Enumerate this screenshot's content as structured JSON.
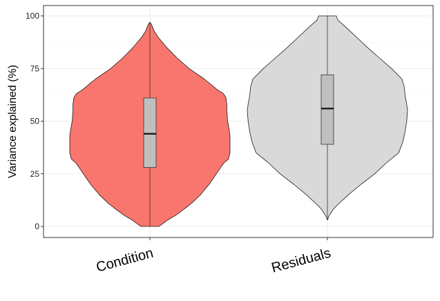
{
  "chart_data": {
    "type": "violin",
    "title": "",
    "xlabel": "",
    "ylabel": "Variance explained (%)",
    "ylim": [
      0,
      100
    ],
    "yticks": [
      0,
      25,
      50,
      75,
      100
    ],
    "grid": true,
    "legend": "none",
    "categories": [
      "Condition",
      "Residuals"
    ],
    "series": [
      {
        "category": "Condition",
        "fill": "#f8766d",
        "box": {
          "min": 0,
          "q1": 28,
          "median": 44,
          "q3": 61,
          "max": 97
        },
        "density": [
          [
            0,
            0.11
          ],
          [
            1,
            0.15
          ],
          [
            3,
            0.22
          ],
          [
            5,
            0.31
          ],
          [
            8,
            0.42
          ],
          [
            11,
            0.52
          ],
          [
            15,
            0.63
          ],
          [
            20,
            0.74
          ],
          [
            25,
            0.83
          ],
          [
            30,
            0.92
          ],
          [
            32,
            0.98
          ],
          [
            35,
            1.0
          ],
          [
            40,
            1.0
          ],
          [
            43,
            1.0
          ],
          [
            46,
            0.99
          ],
          [
            50,
            0.97
          ],
          [
            55,
            0.96
          ],
          [
            58,
            0.96
          ],
          [
            61,
            0.95
          ],
          [
            63,
            0.92
          ],
          [
            65,
            0.84
          ],
          [
            70,
            0.68
          ],
          [
            75,
            0.49
          ],
          [
            80,
            0.34
          ],
          [
            85,
            0.21
          ],
          [
            90,
            0.1
          ],
          [
            93,
            0.05
          ],
          [
            96,
            0.02
          ],
          [
            97,
            0.0
          ]
        ]
      },
      {
        "category": "Residuals",
        "fill": "#d9d9d9",
        "box": {
          "min": 3,
          "q1": 39,
          "median": 56,
          "q3": 72,
          "max": 100
        },
        "density": [
          [
            3,
            0.0
          ],
          [
            5,
            0.02
          ],
          [
            8,
            0.07
          ],
          [
            10,
            0.12
          ],
          [
            15,
            0.26
          ],
          [
            20,
            0.42
          ],
          [
            25,
            0.59
          ],
          [
            30,
            0.73
          ],
          [
            35,
            0.89
          ],
          [
            40,
            0.94
          ],
          [
            45,
            0.97
          ],
          [
            50,
            0.99
          ],
          [
            55,
            1.0
          ],
          [
            58,
            0.99
          ],
          [
            62,
            0.97
          ],
          [
            66,
            0.96
          ],
          [
            70,
            0.93
          ],
          [
            75,
            0.8
          ],
          [
            80,
            0.65
          ],
          [
            85,
            0.5
          ],
          [
            90,
            0.36
          ],
          [
            95,
            0.22
          ],
          [
            98,
            0.13
          ],
          [
            100,
            0.11
          ]
        ]
      }
    ]
  }
}
